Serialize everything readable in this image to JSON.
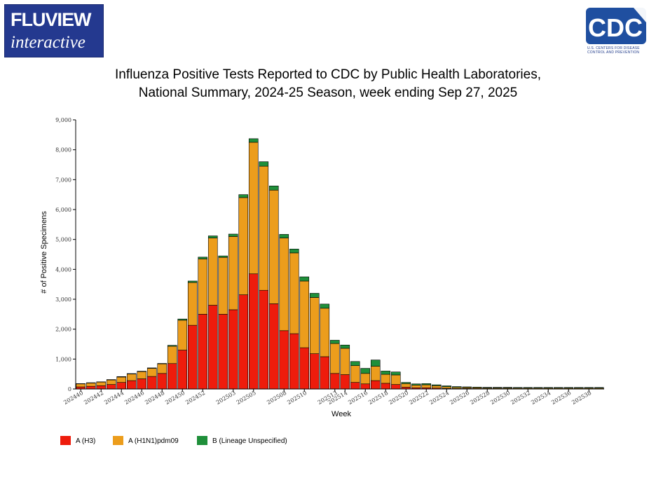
{
  "header": {
    "fluview_logo_line1": "FLUVIEW",
    "fluview_logo_line2": "interactive",
    "cdc_logo_text": "CDC",
    "cdc_logo_subtext": "U.S. CENTERS FOR DISEASE CONTROL AND PREVENTION"
  },
  "colors": {
    "h3": "#ee1c0c",
    "h1n1": "#ec9d1c",
    "lineage_b": "#1f8f3a",
    "logo_blue": "#24398f"
  },
  "chart_data": {
    "type": "bar",
    "stacked": true,
    "title": [
      "Influenza Positive Tests Reported to CDC by Public Health Laboratories,",
      "National Summary, 2024-25 Season, week ending Sep 27, 2025"
    ],
    "xlabel": "Week",
    "ylabel": "# of Positive Specimens",
    "ylim": [
      0,
      9000
    ],
    "yticks": [
      0,
      1000,
      2000,
      3000,
      4000,
      5000,
      6000,
      7000,
      8000,
      9000
    ],
    "ytick_labels": [
      "0",
      "1,000",
      "2,000",
      "3,000",
      "4,000",
      "5,000",
      "6,000",
      "7,000",
      "8,000",
      "9,000"
    ],
    "grid": false,
    "legend_position": "bottom-left",
    "categories": [
      "202440",
      "202441",
      "202442",
      "202443",
      "202444",
      "202445",
      "202446",
      "202447",
      "202448",
      "202449",
      "202450",
      "202451",
      "202452",
      "202501",
      "202502",
      "202503",
      "202504",
      "202505",
      "202506",
      "202507",
      "202508",
      "202509",
      "202510",
      "202511",
      "202512",
      "202513",
      "202514",
      "202515",
      "202516",
      "202517",
      "202518",
      "202519",
      "202520",
      "202521",
      "202522",
      "202523",
      "202524",
      "202525",
      "202526",
      "202527",
      "202528",
      "202529",
      "202530",
      "202531",
      "202532",
      "202533",
      "202534",
      "202535",
      "202536",
      "202537",
      "202538",
      "202539"
    ],
    "xtick_labels": [
      "202440",
      "202442",
      "202444",
      "202446",
      "202448",
      "202450",
      "202452",
      "202503",
      "202505",
      "202508",
      "202510",
      "202513",
      "202514",
      "202516",
      "202518",
      "202520",
      "202522",
      "202524",
      "202526",
      "202528",
      "202530",
      "202532",
      "202534",
      "202536",
      "202538"
    ],
    "xtick_indices": [
      0,
      2,
      4,
      6,
      8,
      10,
      12,
      15,
      17,
      20,
      22,
      25,
      26,
      28,
      30,
      32,
      34,
      36,
      38,
      40,
      42,
      44,
      46,
      48,
      50
    ],
    "series": [
      {
        "name": "A (H3)",
        "color": "#ee1c0c",
        "values": [
          70,
          90,
          110,
          150,
          220,
          280,
          340,
          420,
          520,
          850,
          1300,
          2130,
          2500,
          2800,
          2500,
          2650,
          3150,
          3850,
          3300,
          2850,
          1950,
          1850,
          1380,
          1180,
          1080,
          520,
          480,
          220,
          170,
          280,
          190,
          150,
          60,
          40,
          40,
          30,
          20,
          15,
          15,
          12,
          10,
          10,
          10,
          8,
          8,
          8,
          8,
          8,
          8,
          8,
          8,
          8
        ]
      },
      {
        "name": "A (H1N1)pdm09",
        "color": "#ec9d1c",
        "values": [
          100,
          110,
          120,
          150,
          180,
          220,
          240,
          270,
          320,
          580,
          1000,
          1430,
          1850,
          2250,
          1900,
          2450,
          3250,
          4400,
          4150,
          3800,
          3100,
          2700,
          2230,
          1880,
          1620,
          1000,
          880,
          560,
          350,
          480,
          300,
          320,
          120,
          90,
          100,
          80,
          55,
          40,
          35,
          30,
          25,
          25,
          25,
          22,
          22,
          22,
          22,
          22,
          22,
          22,
          22,
          22
        ]
      },
      {
        "name": "B (Lineage Unspecified)",
        "color": "#1f8f3a",
        "values": [
          10,
          10,
          10,
          15,
          15,
          15,
          15,
          15,
          15,
          30,
          40,
          50,
          60,
          70,
          50,
          80,
          100,
          120,
          150,
          140,
          120,
          130,
          140,
          140,
          140,
          110,
          110,
          140,
          170,
          210,
          110,
          100,
          40,
          40,
          40,
          30,
          30,
          25,
          20,
          20,
          20,
          20,
          20,
          20,
          20,
          20,
          20,
          20,
          20,
          20,
          20,
          20
        ]
      }
    ]
  }
}
